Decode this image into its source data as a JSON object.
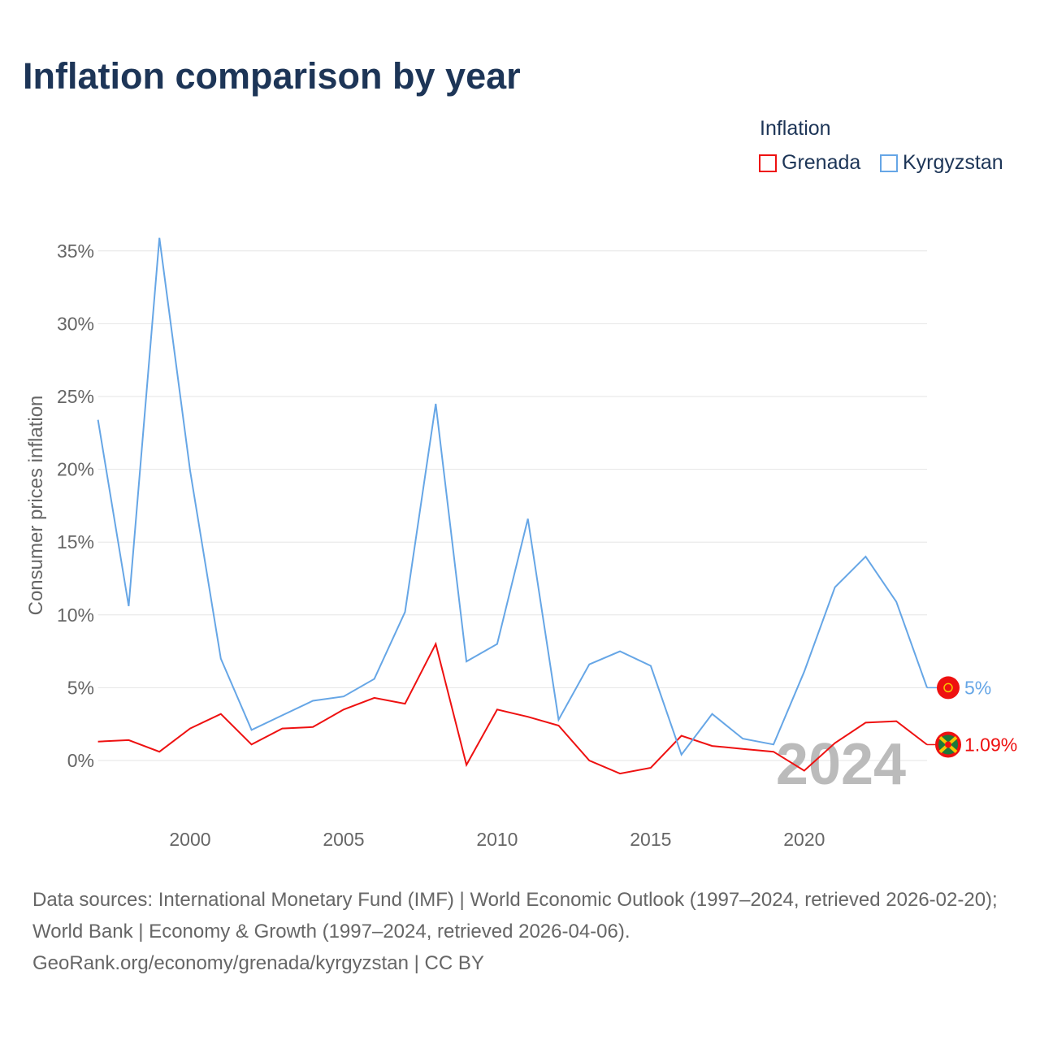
{
  "chart_data": {
    "type": "line",
    "title": "Inflation comparison by year",
    "ylabel": "Consumer prices inflation",
    "xlabel": "",
    "legend_title": "Inflation",
    "legend_position": "top-right",
    "ylim": [
      -3.5,
      37
    ],
    "xlim": [
      1997,
      2024
    ],
    "y_ticks": [
      0,
      5,
      10,
      15,
      20,
      25,
      30,
      35
    ],
    "y_tick_labels": [
      "0%",
      "5%",
      "10%",
      "15%",
      "20%",
      "25%",
      "30%",
      "35%"
    ],
    "x_ticks": [
      2000,
      2005,
      2010,
      2015,
      2020
    ],
    "x_tick_labels": [
      "2000",
      "2005",
      "2010",
      "2015",
      "2020"
    ],
    "grid": true,
    "year_watermark": "2024",
    "x": [
      1997,
      1998,
      1999,
      2000,
      2001,
      2002,
      2003,
      2004,
      2005,
      2006,
      2007,
      2008,
      2009,
      2010,
      2011,
      2012,
      2013,
      2014,
      2015,
      2016,
      2017,
      2018,
      2019,
      2020,
      2021,
      2022,
      2023,
      2024
    ],
    "series": [
      {
        "name": "Grenada",
        "color": "#ee1111",
        "end_label": "1.09%",
        "values": [
          1.3,
          1.4,
          0.6,
          2.2,
          3.2,
          1.1,
          2.2,
          2.3,
          3.5,
          4.3,
          3.9,
          8.0,
          -0.3,
          3.5,
          3.0,
          2.4,
          0.0,
          -0.9,
          -0.5,
          1.7,
          1.0,
          0.8,
          0.6,
          -0.7,
          1.2,
          2.6,
          2.7,
          1.09
        ]
      },
      {
        "name": "Kyrgyzstan",
        "color": "#66a6e6",
        "end_label": "5%",
        "values": [
          23.4,
          10.6,
          35.9,
          19.9,
          7.0,
          2.1,
          3.1,
          4.1,
          4.4,
          5.6,
          10.2,
          24.5,
          6.8,
          8.0,
          16.6,
          2.8,
          6.6,
          7.5,
          6.5,
          0.4,
          3.2,
          1.5,
          1.1,
          6.1,
          11.9,
          14.0,
          10.9,
          5.0
        ]
      }
    ]
  },
  "footer": {
    "source": "Data sources: International Monetary Fund (IMF) | World Economic Outlook (1997–2024, retrieved 2026-02-20); World Bank | Economy & Growth (1997–2024, retrieved 2026-04-06).",
    "url": "GeoRank.org/economy/grenada/kyrgyzstan | CC BY"
  }
}
